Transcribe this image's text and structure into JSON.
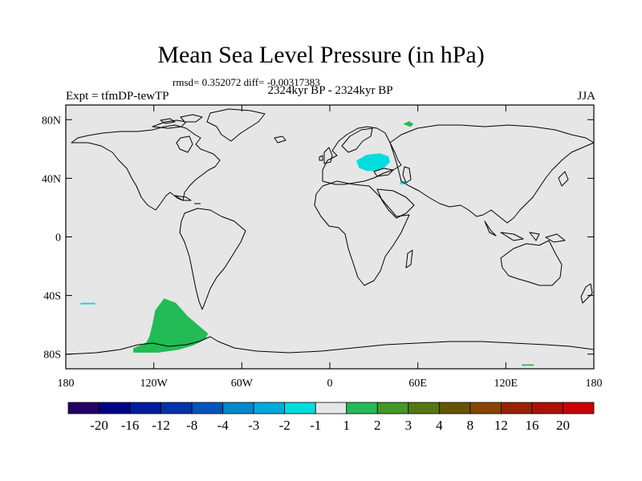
{
  "title": "Mean Sea Level Pressure (in hPa)",
  "stats": "rmsd= 0.352072 diff= -0.00317383",
  "subtitle": "2324kyr BP - 2324kyr BP",
  "expt": "Expt = tfmDP-tewTP",
  "season": "JJA",
  "map": {
    "lon_range": [
      -180,
      180
    ],
    "lat_range": [
      -90,
      90
    ],
    "land_outline_color": "#000000",
    "background_color": "#e6e6e6",
    "y_ticks": [
      {
        "lat": 80,
        "label": "80N"
      },
      {
        "lat": 40,
        "label": "40N"
      },
      {
        "lat": 0,
        "label": "0"
      },
      {
        "lat": -40,
        "label": "40S"
      },
      {
        "lat": -80,
        "label": "80S"
      }
    ],
    "x_ticks": [
      {
        "lon": -180,
        "label": "180"
      },
      {
        "lon": -120,
        "label": "120W"
      },
      {
        "lon": -60,
        "label": "60W"
      },
      {
        "lon": 0,
        "label": "0"
      },
      {
        "lon": 60,
        "label": "60E"
      },
      {
        "lon": 120,
        "label": "120E"
      },
      {
        "lon": 180,
        "label": "180"
      }
    ],
    "anomalies": [
      {
        "name": "south-pacific-positive",
        "range": "1 to 2",
        "color": "#22bb55",
        "pts": [
          [
            -113,
            -42
          ],
          [
            -105,
            -45
          ],
          [
            -97,
            -54
          ],
          [
            -90,
            -60
          ],
          [
            -83,
            -66
          ],
          [
            -85,
            -70
          ],
          [
            -93,
            -74
          ],
          [
            -103,
            -77
          ],
          [
            -117,
            -79
          ],
          [
            -134,
            -79
          ],
          [
            -134,
            -76
          ],
          [
            -125,
            -72
          ],
          [
            -123,
            -68
          ],
          [
            -121,
            -60
          ],
          [
            -119,
            -50
          ]
        ]
      },
      {
        "name": "greenland-sea-positive",
        "range": "1 to 2",
        "color": "#22bb55",
        "pts": [
          [
            50,
            77
          ],
          [
            55,
            75
          ],
          [
            57,
            77
          ],
          [
            54,
            79
          ]
        ]
      },
      {
        "name": "east-antarctic-positive",
        "range": "1 to 2",
        "color": "#22bb55",
        "pts": [
          [
            131,
            -88
          ],
          [
            139,
            -88
          ],
          [
            139,
            -87
          ],
          [
            131,
            -87
          ]
        ]
      },
      {
        "name": "eastern-europe-negative",
        "range": "-2 to -1",
        "color": "#00dddd",
        "pts": [
          [
            18,
            52
          ],
          [
            25,
            56
          ],
          [
            34,
            57
          ],
          [
            40,
            55
          ],
          [
            41,
            51
          ],
          [
            37,
            47
          ],
          [
            31,
            45
          ],
          [
            25,
            45
          ],
          [
            20,
            47
          ]
        ]
      },
      {
        "name": "caspian-negative",
        "range": "-2 to -1",
        "color": "#00dddd",
        "pts": [
          [
            48,
            38
          ],
          [
            52,
            38
          ],
          [
            51,
            36
          ],
          [
            48,
            36
          ]
        ]
      },
      {
        "name": "south-pacific-negative",
        "range": "-2 to -1",
        "color": "#00dddd",
        "pts": [
          [
            -170,
            -45
          ],
          [
            -160,
            -45
          ],
          [
            -160,
            -46
          ],
          [
            -170,
            -46
          ]
        ]
      }
    ]
  },
  "colorbar": {
    "colors": [
      "#220066",
      "#000088",
      "#001c9f",
      "#0033aa",
      "#0055bb",
      "#0088cc",
      "#00aadd",
      "#00dddd",
      "#e6e6e6",
      "#22bb55",
      "#449922",
      "#557711",
      "#665500",
      "#884400",
      "#992200",
      "#aa1100",
      "#cc0000"
    ],
    "labels": [
      "-20",
      "-16",
      "-12",
      "-8",
      "-4",
      "-3",
      "-2",
      "-1",
      "1",
      "2",
      "3",
      "4",
      "8",
      "12",
      "16",
      "20"
    ]
  }
}
